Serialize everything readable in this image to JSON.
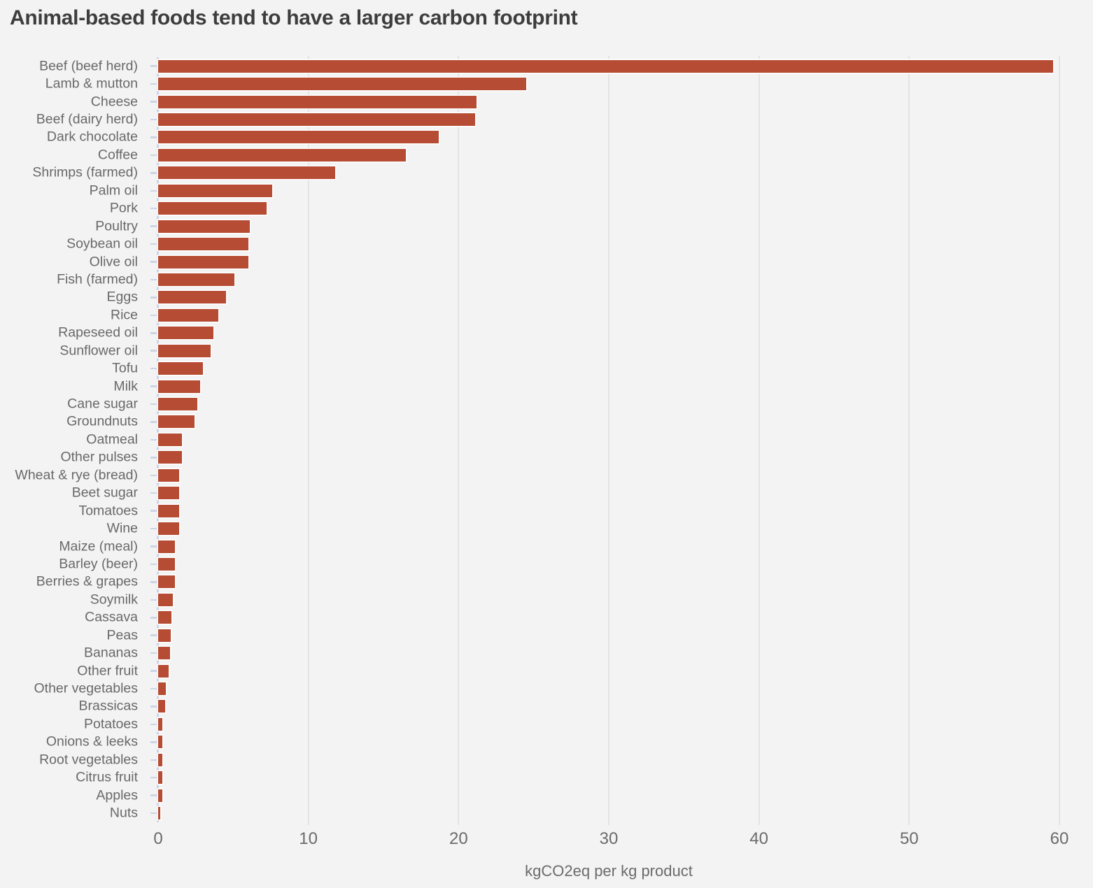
{
  "title": "Animal-based foods tend to have a larger carbon footprint",
  "colors": {
    "bar": "#b54c33",
    "bar_stroke": "#ffffff",
    "background": "#f3f3f3",
    "axis_spine": "#ccd4e6",
    "gridline": "#e4e4e4",
    "title_text": "#3d3d3d",
    "label_text": "#696969"
  },
  "chart_data": {
    "type": "bar",
    "orientation": "horizontal",
    "title": "Animal-based foods tend to have a larger carbon footprint",
    "xlabel": "kgCO2eq per kg product",
    "ylabel": "",
    "xlim": [
      0,
      60
    ],
    "x_ticks": [
      0,
      10,
      20,
      30,
      40,
      50,
      60
    ],
    "grid": true,
    "legend": "none",
    "categories": [
      "Beef (beef herd)",
      "Lamb & mutton",
      "Cheese",
      "Beef (dairy herd)",
      "Dark chocolate",
      "Coffee",
      "Shrimps (farmed)",
      "Palm oil",
      "Pork",
      "Poultry",
      "Soybean oil",
      "Olive oil",
      "Fish (farmed)",
      "Eggs",
      "Rice",
      "Rapeseed oil",
      "Sunflower oil",
      "Tofu",
      "Milk",
      "Cane sugar",
      "Groundnuts",
      "Oatmeal",
      "Other pulses",
      "Wheat & rye (bread)",
      "Beet sugar",
      "Tomatoes",
      "Wine",
      "Maize (meal)",
      "Barley (beer)",
      "Berries & grapes",
      "Soymilk",
      "Cassava",
      "Peas",
      "Bananas",
      "Other fruit",
      "Other vegetables",
      "Brassicas",
      "Potatoes",
      "Onions & leeks",
      "Root vegetables",
      "Citrus fruit",
      "Apples",
      "Nuts"
    ],
    "values": [
      59.6,
      24.5,
      21.2,
      21.1,
      18.7,
      16.5,
      11.8,
      7.6,
      7.2,
      6.1,
      6.0,
      6.0,
      5.1,
      4.5,
      4.0,
      3.7,
      3.5,
      3.0,
      2.8,
      2.6,
      2.4,
      1.6,
      1.6,
      1.4,
      1.4,
      1.4,
      1.4,
      1.1,
      1.1,
      1.1,
      1.0,
      0.9,
      0.85,
      0.8,
      0.7,
      0.5,
      0.45,
      0.3,
      0.3,
      0.27,
      0.27,
      0.3,
      0.15
    ]
  }
}
